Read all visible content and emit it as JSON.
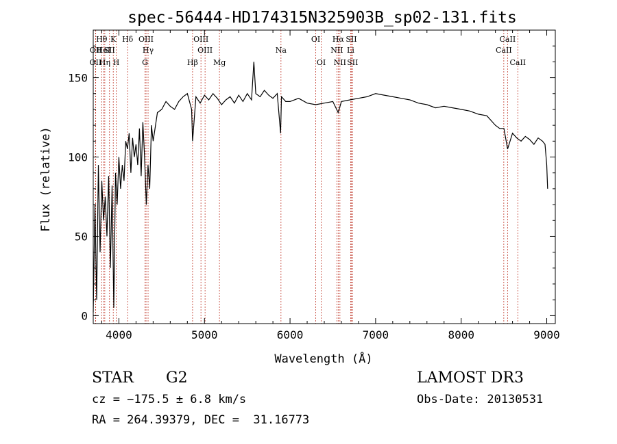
{
  "chart_data": {
    "type": "line",
    "title": "spec-56444-HD174315N325903B_sp02-131.fits",
    "xlabel": "Wavelength (Å)",
    "ylabel": "Flux (relative)",
    "xlim": [
      3700,
      9100
    ],
    "ylim": [
      -5,
      180
    ],
    "xticks": [
      4000,
      5000,
      6000,
      7000,
      8000,
      9000
    ],
    "xtick_labels": [
      "4000",
      "5000",
      "6000",
      "7000",
      "8000",
      "9000"
    ],
    "yticks": [
      0,
      50,
      100,
      150
    ],
    "ytick_labels": [
      "0",
      "50",
      "100",
      "150"
    ],
    "grid": false,
    "legend": "none",
    "series": [
      {
        "name": "flux",
        "x": [
          3700,
          3720,
          3740,
          3760,
          3780,
          3800,
          3820,
          3840,
          3860,
          3880,
          3900,
          3920,
          3940,
          3960,
          3980,
          4000,
          4020,
          4040,
          4060,
          4080,
          4100,
          4120,
          4140,
          4160,
          4180,
          4200,
          4220,
          4240,
          4260,
          4280,
          4300,
          4320,
          4340,
          4360,
          4380,
          4400,
          4450,
          4500,
          4550,
          4600,
          4650,
          4700,
          4750,
          4800,
          4850,
          4861,
          4900,
          4950,
          5000,
          5050,
          5100,
          5150,
          5200,
          5250,
          5300,
          5350,
          5400,
          5450,
          5500,
          5550,
          5577,
          5600,
          5650,
          5700,
          5750,
          5800,
          5850,
          5890,
          5900,
          5950,
          6000,
          6100,
          6200,
          6300,
          6400,
          6500,
          6563,
          6600,
          6700,
          6800,
          6900,
          7000,
          7100,
          7200,
          7300,
          7400,
          7500,
          7600,
          7700,
          7800,
          7900,
          8000,
          8100,
          8200,
          8300,
          8400,
          8450,
          8500,
          8542,
          8600,
          8650,
          8700,
          8750,
          8800,
          8850,
          8900,
          8950,
          8980,
          9000,
          9010
        ],
        "y": [
          2,
          70,
          10,
          95,
          40,
          85,
          60,
          75,
          50,
          88,
          30,
          82,
          5,
          90,
          70,
          100,
          80,
          95,
          85,
          110,
          105,
          115,
          90,
          112,
          100,
          108,
          95,
          118,
          88,
          122,
          100,
          70,
          95,
          80,
          120,
          110,
          128,
          130,
          135,
          132,
          130,
          135,
          138,
          140,
          130,
          110,
          138,
          134,
          139,
          136,
          140,
          137,
          133,
          136,
          138,
          134,
          139,
          135,
          140,
          136,
          160,
          140,
          138,
          142,
          139,
          137,
          140,
          115,
          138,
          135,
          135,
          137,
          134,
          133,
          134,
          135,
          128,
          135,
          136,
          137,
          138,
          140,
          139,
          138,
          137,
          136,
          134,
          133,
          131,
          132,
          131,
          130,
          129,
          127,
          126,
          120,
          118,
          118,
          105,
          115,
          112,
          110,
          113,
          111,
          108,
          112,
          110,
          108,
          95,
          80
        ]
      }
    ],
    "lines": [
      {
        "label": "OII",
        "x": 3727,
        "row": 3
      },
      {
        "label": "OII",
        "x": 3729,
        "row": 2
      },
      {
        "label": "Hθ",
        "x": 3798,
        "row": 1
      },
      {
        "label": "HeI",
        "x": 3820,
        "row": 2
      },
      {
        "label": "Hη",
        "x": 3835,
        "row": 3
      },
      {
        "label": "K",
        "x": 3934,
        "row": 1
      },
      {
        "label": "SII",
        "x": 3890,
        "row": 2
      },
      {
        "label": "H",
        "x": 3969,
        "row": 3
      },
      {
        "label": "Hδ",
        "x": 4102,
        "row": 1
      },
      {
        "label": "OIII",
        "x": 4317,
        "row": 1
      },
      {
        "label": "Hγ",
        "x": 4341,
        "row": 2
      },
      {
        "label": "G",
        "x": 4305,
        "row": 3
      },
      {
        "label": "OIII",
        "x": 4959,
        "row": 1
      },
      {
        "label": "OIII",
        "x": 5007,
        "row": 2
      },
      {
        "label": "Hβ",
        "x": 4861,
        "row": 3
      },
      {
        "label": "Mg",
        "x": 5175,
        "row": 3
      },
      {
        "label": "Na",
        "x": 5894,
        "row": 2
      },
      {
        "label": "OI",
        "x": 6300,
        "row": 1
      },
      {
        "label": "OI",
        "x": 6364,
        "row": 3
      },
      {
        "label": "Hα",
        "x": 6563,
        "row": 1
      },
      {
        "label": "NII",
        "x": 6548,
        "row": 2
      },
      {
        "label": "NII",
        "x": 6583,
        "row": 3
      },
      {
        "label": "SII",
        "x": 6716,
        "row": 1
      },
      {
        "label": "Li",
        "x": 6708,
        "row": 2
      },
      {
        "label": "SII",
        "x": 6731,
        "row": 3
      },
      {
        "label": "CaII",
        "x": 8542,
        "row": 1
      },
      {
        "label": "CaII",
        "x": 8498,
        "row": 2
      },
      {
        "label": "CaII",
        "x": 8662,
        "row": 3
      }
    ]
  },
  "info": {
    "object_type": "STAR",
    "subclass": "G2",
    "survey": "LAMOST DR3",
    "cz": "cz = −175.5 ± 6.8 km/s",
    "obs_date": "Obs-Date: 20130531",
    "coords": "RA = 264.39379, DEC =  31.16773"
  }
}
